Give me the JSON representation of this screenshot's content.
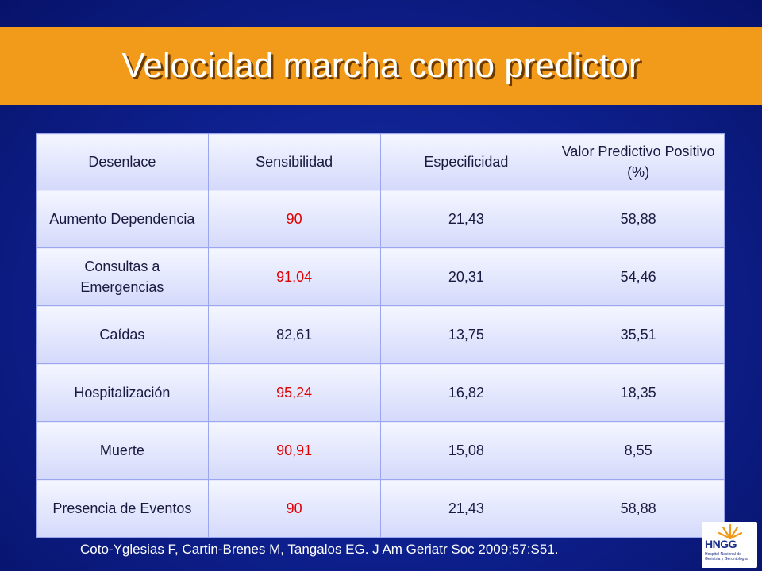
{
  "slide": {
    "title": "Velocidad marcha como predictor",
    "citation": "Coto-Yglesias F, Cartin-Brenes M, Tangalos EG. J Am Geriatr Soc 2009;57:S51.",
    "accent_color": "#f29a1a",
    "highlight_color": "#e00000"
  },
  "table": {
    "headers": [
      "Desenlace",
      "Sensibilidad",
      "Especificidad",
      "Valor Predictivo Positivo (%)"
    ],
    "rows": [
      {
        "outcome": "Aumento Dependencia",
        "sens": "90",
        "spec": "21,43",
        "vpp": "58,88",
        "sens_highlight": true
      },
      {
        "outcome": "Consultas a Emergencias",
        "sens": "91,04",
        "spec": "20,31",
        "vpp": "54,46",
        "sens_highlight": true
      },
      {
        "outcome": "Caídas",
        "sens": "82,61",
        "spec": "13,75",
        "vpp": "35,51",
        "sens_highlight": false
      },
      {
        "outcome": "Hospitalización",
        "sens": "95,24",
        "spec": "16,82",
        "vpp": "18,35",
        "sens_highlight": true
      },
      {
        "outcome": "Muerte",
        "sens": "90,91",
        "spec": "15,08",
        "vpp": "8,55",
        "sens_highlight": true
      },
      {
        "outcome": "Presencia de Eventos",
        "sens": "90",
        "spec": "21,43",
        "vpp": "58,88",
        "sens_highlight": true
      }
    ]
  },
  "logo": {
    "brand": "HNGG",
    "subtitle": "Hospital Nacional de Geriatría y Gerontología",
    "icon": "sun-rays-icon"
  }
}
